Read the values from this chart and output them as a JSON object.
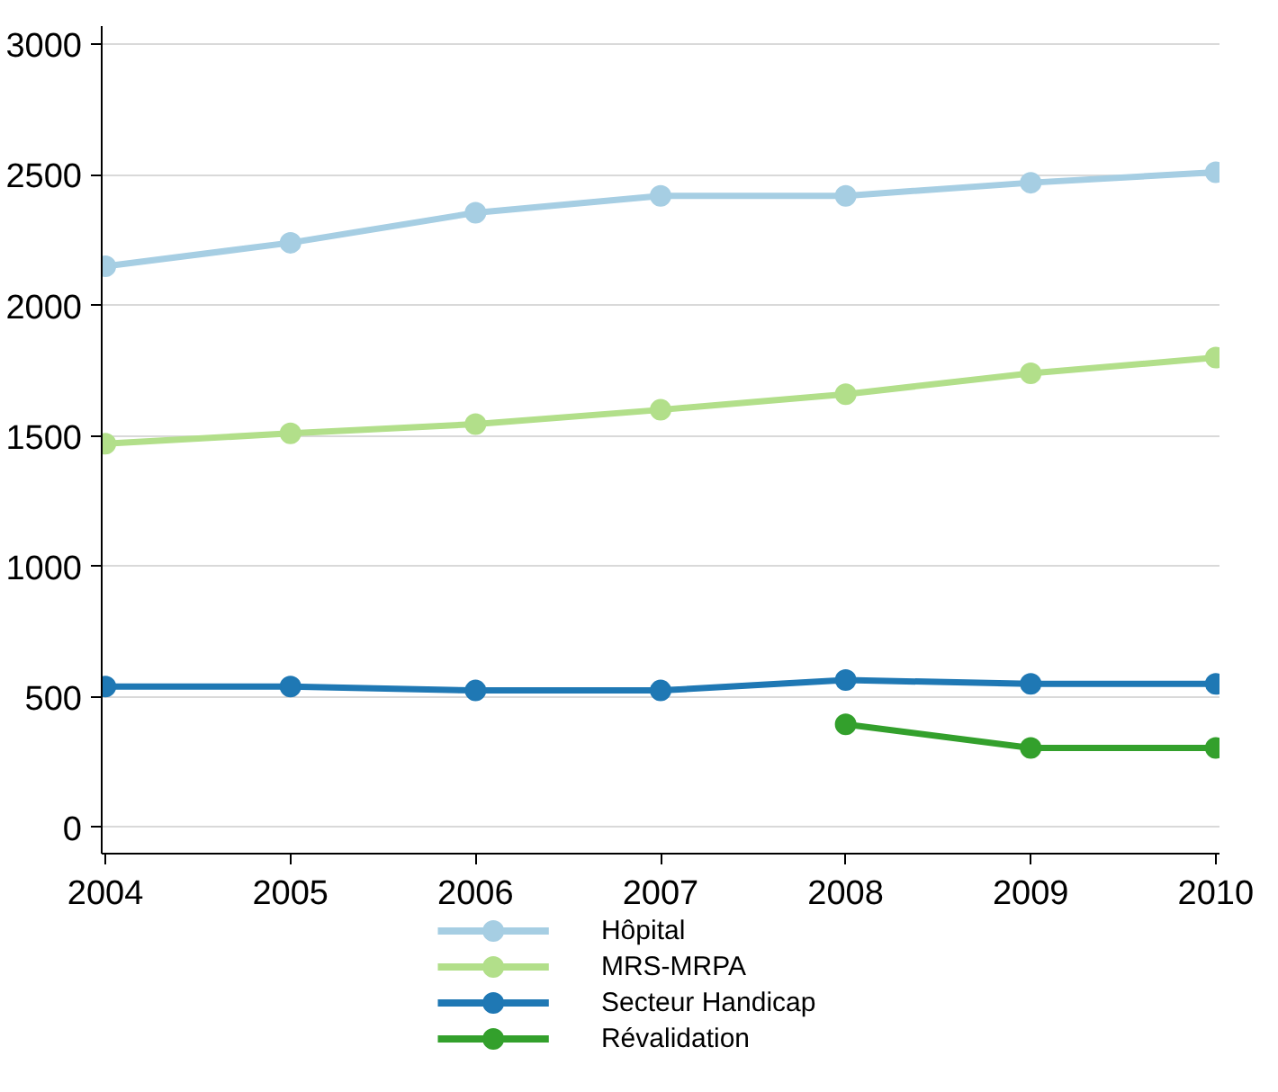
{
  "chart_data": {
    "type": "line",
    "x": [
      2004,
      2005,
      2006,
      2007,
      2008,
      2009,
      2010
    ],
    "xlim": [
      2003.98,
      2010.02
    ],
    "xticks": [
      2004,
      2005,
      2006,
      2007,
      2008,
      2009,
      2010
    ],
    "ylim": [
      -100,
      3070
    ],
    "yticks": [
      0,
      500,
      1000,
      1500,
      2000,
      2500,
      3000
    ],
    "grid": "y",
    "legend": "bottom",
    "marker": "circle",
    "line_style": "solid",
    "series": [
      {
        "name": "Hôpital",
        "color": "#a6cee3",
        "values": [
          2150,
          2240,
          2355,
          2420,
          2420,
          2470,
          2510
        ]
      },
      {
        "name": "MRS-MRPA",
        "color": "#b2df8a",
        "values": [
          1470,
          1510,
          1545,
          1600,
          1660,
          1740,
          1800
        ]
      },
      {
        "name": "Secteur Handicap",
        "color": "#1f78b4",
        "values": [
          540,
          540,
          525,
          525,
          565,
          550,
          550
        ]
      },
      {
        "name": "Révalidation",
        "color": "#33a02c",
        "values": [
          null,
          null,
          null,
          null,
          395,
          305,
          305
        ]
      }
    ]
  }
}
